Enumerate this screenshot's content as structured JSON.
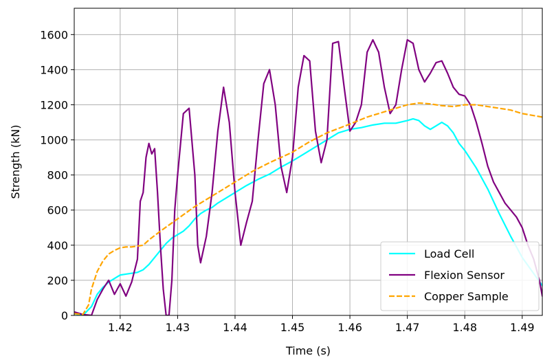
{
  "chart_data": {
    "type": "line",
    "title": "",
    "xlabel": "Time (s)",
    "ylabel": "Strength (kN)",
    "xlim": [
      1.412,
      1.4935
    ],
    "ylim": [
      0,
      1750
    ],
    "xticks": [
      1.42,
      1.43,
      1.44,
      1.45,
      1.46,
      1.47,
      1.48,
      1.49
    ],
    "xtick_labels": [
      "1.42",
      "1.43",
      "1.44",
      "1.45",
      "1.46",
      "1.47",
      "1.48",
      "1.49"
    ],
    "yticks": [
      0,
      200,
      400,
      600,
      800,
      1000,
      1200,
      1400,
      1600
    ],
    "ytick_labels": [
      "0",
      "200",
      "400",
      "600",
      "800",
      "1000",
      "1200",
      "1400",
      "1600"
    ],
    "grid": true,
    "legend_position": "lower-right",
    "series": [
      {
        "name": "Load Cell",
        "color": "#00ffff",
        "style": "solid",
        "x": [
          1.412,
          1.4135,
          1.415,
          1.416,
          1.417,
          1.418,
          1.419,
          1.42,
          1.421,
          1.422,
          1.423,
          1.424,
          1.425,
          1.426,
          1.427,
          1.428,
          1.429,
          1.43,
          1.431,
          1.432,
          1.433,
          1.434,
          1.435,
          1.436,
          1.437,
          1.438,
          1.44,
          1.442,
          1.444,
          1.446,
          1.448,
          1.45,
          1.452,
          1.454,
          1.456,
          1.458,
          1.46,
          1.462,
          1.464,
          1.466,
          1.468,
          1.47,
          1.471,
          1.472,
          1.473,
          1.474,
          1.475,
          1.476,
          1.477,
          1.478,
          1.479,
          1.48,
          1.482,
          1.484,
          1.486,
          1.488,
          1.49,
          1.4935
        ],
        "values": [
          10,
          0,
          50,
          120,
          160,
          190,
          210,
          230,
          235,
          240,
          245,
          260,
          290,
          330,
          370,
          410,
          440,
          460,
          480,
          510,
          550,
          580,
          600,
          615,
          640,
          660,
          700,
          740,
          775,
          805,
          845,
          880,
          920,
          960,
          1000,
          1040,
          1060,
          1070,
          1085,
          1095,
          1095,
          1110,
          1120,
          1110,
          1080,
          1060,
          1080,
          1100,
          1080,
          1040,
          980,
          940,
          840,
          720,
          580,
          450,
          330,
          170
        ]
      },
      {
        "name": "Flexion Sensor",
        "color": "#800080",
        "style": "solid",
        "x": [
          1.412,
          1.4135,
          1.415,
          1.416,
          1.417,
          1.418,
          1.419,
          1.42,
          1.421,
          1.422,
          1.423,
          1.4235,
          1.424,
          1.4245,
          1.425,
          1.4255,
          1.426,
          1.4265,
          1.427,
          1.4275,
          1.428,
          1.4285,
          1.429,
          1.4295,
          1.43,
          1.431,
          1.432,
          1.433,
          1.4335,
          1.434,
          1.435,
          1.436,
          1.437,
          1.438,
          1.439,
          1.44,
          1.441,
          1.442,
          1.443,
          1.444,
          1.445,
          1.446,
          1.447,
          1.448,
          1.449,
          1.45,
          1.451,
          1.452,
          1.453,
          1.454,
          1.455,
          1.456,
          1.457,
          1.458,
          1.459,
          1.46,
          1.461,
          1.462,
          1.463,
          1.464,
          1.465,
          1.466,
          1.467,
          1.468,
          1.469,
          1.47,
          1.471,
          1.472,
          1.473,
          1.474,
          1.475,
          1.476,
          1.477,
          1.478,
          1.479,
          1.48,
          1.481,
          1.482,
          1.483,
          1.484,
          1.485,
          1.486,
          1.487,
          1.488,
          1.489,
          1.49,
          1.491,
          1.492,
          1.493,
          1.4935
        ],
        "values": [
          20,
          5,
          0,
          90,
          150,
          200,
          120,
          180,
          110,
          190,
          320,
          650,
          700,
          900,
          980,
          920,
          950,
          700,
          400,
          150,
          0,
          0,
          200,
          600,
          800,
          1150,
          1180,
          800,
          400,
          300,
          450,
          700,
          1050,
          1300,
          1100,
          700,
          400,
          530,
          650,
          1000,
          1320,
          1400,
          1200,
          850,
          700,
          900,
          1300,
          1480,
          1450,
          1050,
          870,
          1000,
          1550,
          1560,
          1300,
          1050,
          1100,
          1200,
          1500,
          1570,
          1500,
          1300,
          1150,
          1200,
          1400,
          1570,
          1550,
          1400,
          1330,
          1380,
          1440,
          1450,
          1380,
          1300,
          1260,
          1250,
          1200,
          1100,
          980,
          850,
          760,
          700,
          640,
          600,
          560,
          500,
          400,
          320,
          200,
          110
        ]
      },
      {
        "name": "Copper Sample",
        "color": "#ffa500",
        "style": "dashed",
        "x": [
          1.412,
          1.4135,
          1.4145,
          1.415,
          1.416,
          1.417,
          1.418,
          1.419,
          1.42,
          1.421,
          1.422,
          1.423,
          1.424,
          1.425,
          1.427,
          1.43,
          1.433,
          1.436,
          1.44,
          1.443,
          1.446,
          1.45,
          1.453,
          1.456,
          1.46,
          1.463,
          1.466,
          1.468,
          1.47,
          1.472,
          1.474,
          1.476,
          1.478,
          1.48,
          1.482,
          1.484,
          1.486,
          1.488,
          1.49,
          1.4935
        ],
        "values": [
          10,
          5,
          60,
          150,
          250,
          310,
          350,
          370,
          385,
          390,
          390,
          395,
          400,
          430,
          480,
          550,
          620,
          680,
          760,
          820,
          870,
          930,
          990,
          1040,
          1090,
          1130,
          1160,
          1180,
          1200,
          1210,
          1205,
          1195,
          1190,
          1200,
          1200,
          1190,
          1180,
          1170,
          1150,
          1130
        ]
      }
    ]
  }
}
